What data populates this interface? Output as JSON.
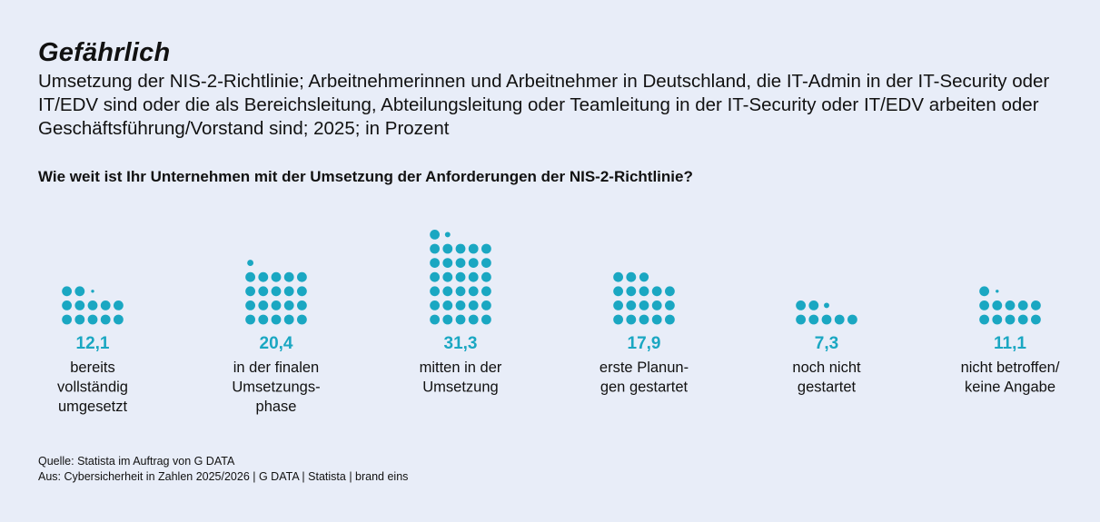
{
  "title": "Gefährlich",
  "subtitle": "Umsetzung der NIS-2-Richtlinie; Arbeitnehmerinnen und Arbeitnehmer in Deutschland, die IT-Admin in der IT-Security oder IT/EDV sind oder die als Bereichsleitung, Abteilungsleitung oder Teamleitung in der IT-Security oder IT/EDV arbeiten oder Geschäftsführung/Vorstand sind; 2025; in Prozent",
  "question": "Wie weit ist Ihr Unternehmen mit der Umsetzung der Anforderungen der NIS-2-Richtlinie?",
  "source": {
    "line1": "Quelle: Statista im Auftrag von G DATA",
    "line2": "Aus: Cybersicherheit in Zahlen 2025/2026 | G DATA | Statista | brand eins"
  },
  "chart_data": {
    "type": "bar",
    "unit": "Prozent",
    "categories": [
      [
        "bereits",
        "vollständig",
        "umgesetzt"
      ],
      [
        "in der finalen",
        "Umsetzungs-",
        "phase"
      ],
      [
        "mitten in der",
        "Umsetzung"
      ],
      [
        "erste Planun-",
        "gen gestartet"
      ],
      [
        "noch nicht",
        "gestartet"
      ],
      [
        "nicht betroffen/",
        "keine Angabe"
      ]
    ],
    "values": [
      12.1,
      20.4,
      31.3,
      17.9,
      7.3,
      11.1
    ],
    "value_labels": [
      "12,1",
      "20,4",
      "31,3",
      "17,9",
      "7,3",
      "11,1"
    ],
    "colors": {
      "dots": "#1aa7c2",
      "value_text": "#1aa7c2"
    }
  }
}
